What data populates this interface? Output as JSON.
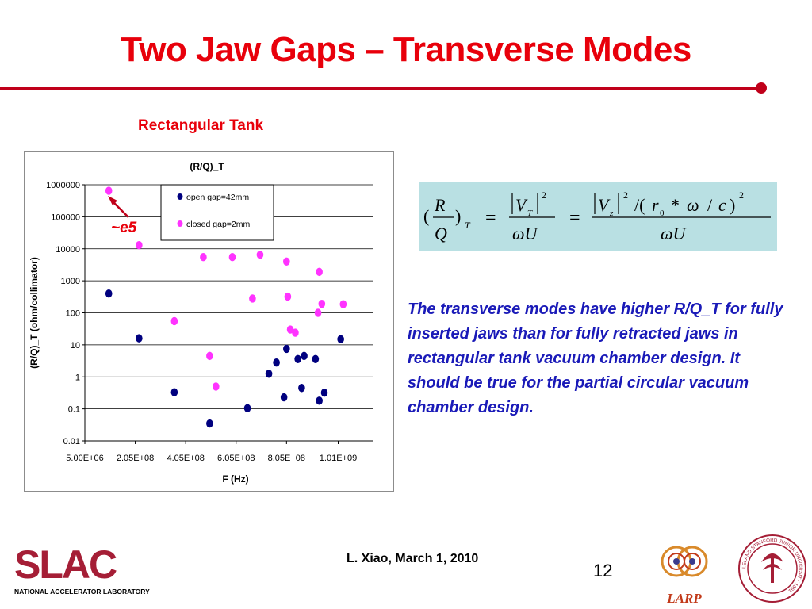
{
  "slide": {
    "title": "Two Jaw Gaps – Transverse Modes",
    "subtitle": "Rectangular Tank",
    "annotation": "~e5",
    "formula_text": "(R/Q)_T = |V_T|^2/(ωU) = |V_z|^2/(r_0*ω/c)^2/(ωU)",
    "description": "The transverse modes have higher R/Q_T for fully inserted  jaws than for fully retracted jaws in rectangular tank vacuum chamber design.  It should be true for the partial circular vacuum chamber design.",
    "footer_author": "L. Xiao, March 1, 2010",
    "page_number": "12",
    "logos": {
      "slac_main": "SLAC",
      "slac_sub": "NATIONAL ACCELERATOR LABORATORY",
      "larp": "LARP",
      "stanford": "LELAND STANFORD JUNIOR UNIVERSITY 1891"
    },
    "colors": {
      "title_red": "#e8000b",
      "rule_red": "#c0001a",
      "text_blue": "#1a1ab8",
      "formula_bg": "#b9e0e3",
      "open_series": "#00007f",
      "closed_series": "#ff33ff",
      "slac_red": "#a51e36"
    }
  },
  "chart_data": {
    "type": "scatter",
    "title": "(R/Q)_T",
    "xlabel": "F (Hz)",
    "ylabel": "(R/Q)_T (ohm/collimator)",
    "y_scale": "log",
    "ylim": [
      0.01,
      1000000
    ],
    "xlim": [
      5000000,
      1150000000
    ],
    "x_ticks": [
      5000000,
      205000000,
      405000000,
      605000000,
      805000000,
      1010000000
    ],
    "x_tick_labels": [
      "5.00E+06",
      "2.05E+08",
      "4.05E+08",
      "6.05E+08",
      "8.05E+08",
      "1.01E+09"
    ],
    "y_ticks": [
      0.01,
      0.1,
      1,
      10,
      100,
      1000,
      10000,
      100000,
      1000000
    ],
    "y_tick_labels": [
      "0.01",
      "0.1",
      "1",
      "10",
      "100",
      "1000",
      "10000",
      "100000",
      "1000000"
    ],
    "grid": "horizontal",
    "legend_position": "top-center",
    "series": [
      {
        "name": "open gap=42mm",
        "color": "#00007f",
        "points": [
          [
            100000000,
            400
          ],
          [
            220000000,
            16
          ],
          [
            360000000,
            0.33
          ],
          [
            500000000,
            0.035
          ],
          [
            650000000,
            0.105
          ],
          [
            735000000,
            1.25
          ],
          [
            765000000,
            2.8
          ],
          [
            795000000,
            0.23
          ],
          [
            805000000,
            7.5
          ],
          [
            850000000,
            3.6
          ],
          [
            865000000,
            0.45
          ],
          [
            875000000,
            4.5
          ],
          [
            920000000,
            3.6
          ],
          [
            935000000,
            0.18
          ],
          [
            955000000,
            0.32
          ],
          [
            1020000000,
            15
          ]
        ]
      },
      {
        "name": "closed gap=2mm",
        "color": "#ff33ff",
        "points": [
          [
            100000000,
            650000
          ],
          [
            220000000,
            13000
          ],
          [
            360000000,
            55
          ],
          [
            475000000,
            5500
          ],
          [
            500000000,
            4.5
          ],
          [
            525000000,
            0.5
          ],
          [
            590000000,
            5500
          ],
          [
            670000000,
            280
          ],
          [
            700000000,
            6500
          ],
          [
            805000000,
            4000
          ],
          [
            810000000,
            320
          ],
          [
            820000000,
            30
          ],
          [
            840000000,
            24
          ],
          [
            930000000,
            100
          ],
          [
            935000000,
            1900
          ],
          [
            945000000,
            190
          ],
          [
            1030000000,
            185
          ]
        ]
      }
    ]
  }
}
